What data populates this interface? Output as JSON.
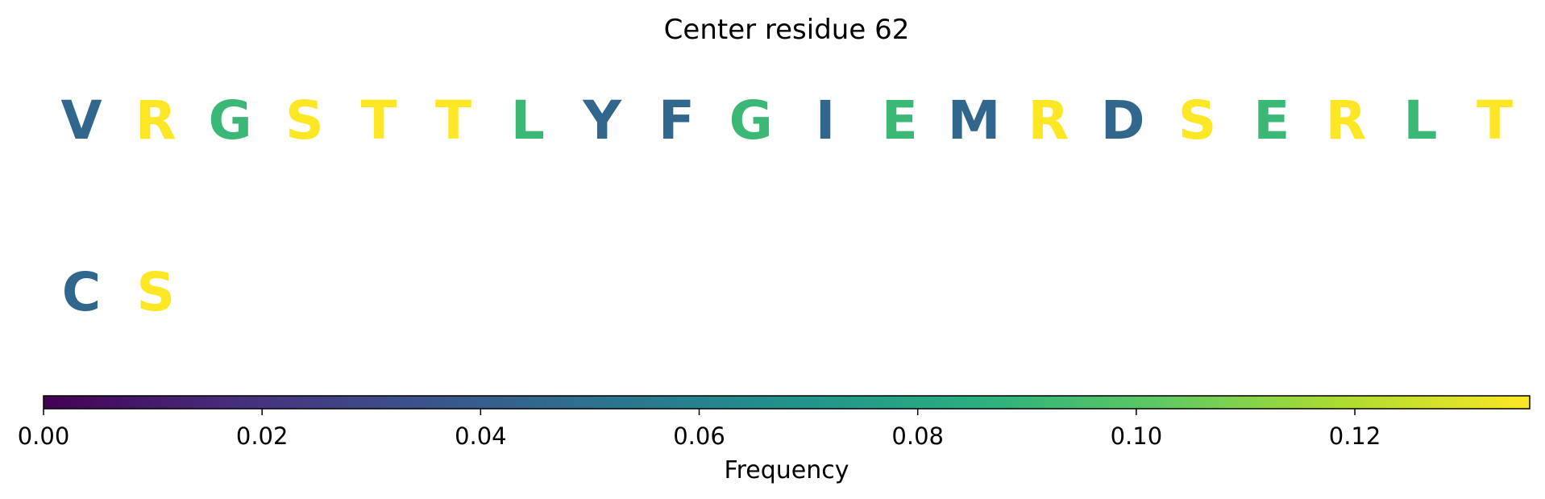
{
  "chart_data": {
    "type": "other",
    "title": "Center residue 62",
    "residues": [
      {
        "letter": "V",
        "frequency": 0.045
      },
      {
        "letter": "R",
        "frequency": 0.136
      },
      {
        "letter": "G",
        "frequency": 0.091
      },
      {
        "letter": "S",
        "frequency": 0.136
      },
      {
        "letter": "T",
        "frequency": 0.136
      },
      {
        "letter": "T",
        "frequency": 0.136
      },
      {
        "letter": "L",
        "frequency": 0.091
      },
      {
        "letter": "Y",
        "frequency": 0.045
      },
      {
        "letter": "F",
        "frequency": 0.045
      },
      {
        "letter": "G",
        "frequency": 0.091
      },
      {
        "letter": "I",
        "frequency": 0.045
      },
      {
        "letter": "E",
        "frequency": 0.091
      },
      {
        "letter": "M",
        "frequency": 0.045
      },
      {
        "letter": "R",
        "frequency": 0.136
      },
      {
        "letter": "D",
        "frequency": 0.045
      },
      {
        "letter": "S",
        "frequency": 0.136
      },
      {
        "letter": "E",
        "frequency": 0.091
      },
      {
        "letter": "R",
        "frequency": 0.136
      },
      {
        "letter": "L",
        "frequency": 0.091
      },
      {
        "letter": "T",
        "frequency": 0.136
      },
      {
        "letter": "C",
        "frequency": 0.045
      },
      {
        "letter": "S",
        "frequency": 0.136
      }
    ],
    "colorbar": {
      "label": "Frequency",
      "colormap": "viridis",
      "range": [
        0,
        0.136
      ],
      "ticks": [
        "0.00",
        "0.02",
        "0.04",
        "0.06",
        "0.08",
        "0.10",
        "0.12"
      ],
      "tick_values": [
        0,
        0.02,
        0.04,
        0.06,
        0.08,
        0.1,
        0.12
      ]
    }
  }
}
